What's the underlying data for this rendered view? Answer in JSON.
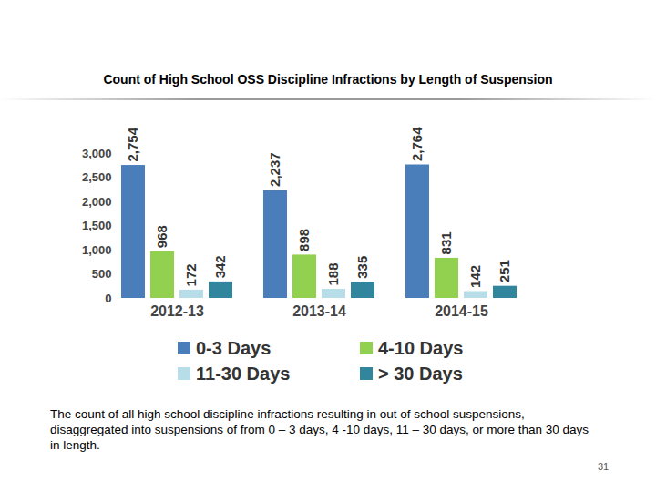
{
  "chart_data": {
    "type": "bar",
    "title": "Count of High School OSS Discipline Infractions by Length of Suspension",
    "caption": "The count of all high school discipline infractions resulting in out of school suspensions, disaggregated into suspensions of from 0 – 3 days, 4 -10 days, 11 – 30 days, or more than 30 days in length.",
    "annotations": [
      "31"
    ],
    "categories": [
      "2012-13",
      "2013-14",
      "2014-15"
    ],
    "series": [
      {
        "name": "0-3 Days",
        "color": "#4a7ebb",
        "values": [
          2754,
          2237,
          2764
        ],
        "value_labels": [
          "2,754",
          "2,237",
          "2,764"
        ]
      },
      {
        "name": "4-10 Days",
        "color": "#92d050",
        "values": [
          968,
          898,
          831
        ]
      },
      {
        "name": "11-30 Days",
        "color": "#b7dee8",
        "values": [
          172,
          188,
          142
        ]
      },
      {
        "name": "> 30 Days",
        "color": "#31859c",
        "values": [
          342,
          335,
          251
        ]
      }
    ],
    "ylim": [
      0,
      3000
    ],
    "yticks": [
      0,
      500,
      {
        "value": 1000,
        "label": "1,000"
      },
      {
        "value": 1500,
        "label": "1,500"
      },
      {
        "value": 2000,
        "label": "2,000"
      },
      {
        "value": 2500,
        "label": "2,500"
      },
      {
        "value": 3000,
        "label": "3,000"
      }
    ],
    "grid": false,
    "legend": "bottom",
    "data_labels": true
  }
}
